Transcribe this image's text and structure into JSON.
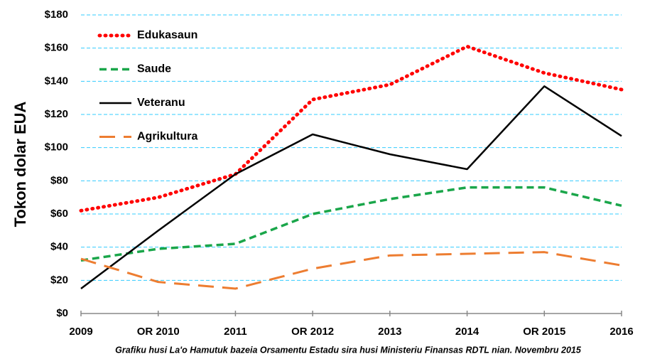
{
  "chart_data": {
    "type": "line",
    "y_label": "Tokon dolar EUA",
    "caption": "Grafiku husi La'o Hamutuk bazeia Orsamentu Estadu sira husi Ministeriu Finansas RDTL nian. Novembru 2015",
    "categories": [
      "2009",
      "OR 2010",
      "2011",
      "OR 2012",
      "2013",
      "2014",
      "OR 2015",
      "2016"
    ],
    "series": [
      {
        "name": "Edukasaun",
        "color": "#ff0000",
        "dash": "dotted",
        "values": [
          62,
          70,
          84,
          129,
          138,
          161,
          145,
          135
        ]
      },
      {
        "name": "Saude",
        "color": "#1aa64a",
        "dash": "dashed",
        "values": [
          32,
          39,
          42,
          60,
          69,
          76,
          76,
          65
        ]
      },
      {
        "name": "Veteranu",
        "color": "#000000",
        "dash": "solid",
        "values": [
          15,
          50,
          84,
          108,
          96,
          87,
          137,
          107
        ]
      },
      {
        "name": "Agrikultura",
        "color": "#ed7d31",
        "dash": "longdash",
        "values": [
          33,
          19,
          15,
          27,
          35,
          36,
          37,
          29
        ]
      }
    ],
    "ylim": [
      0,
      180
    ],
    "yticks": [
      {
        "value": 0,
        "label": "$0"
      },
      {
        "value": 20,
        "label": "$20"
      },
      {
        "value": 40,
        "label": "$40"
      },
      {
        "value": 60,
        "label": "$60"
      },
      {
        "value": 80,
        "label": "$80"
      },
      {
        "value": 100,
        "label": "$100"
      },
      {
        "value": 120,
        "label": "$120"
      },
      {
        "value": 140,
        "label": "$140"
      },
      {
        "value": 160,
        "label": "$160"
      },
      {
        "value": 180,
        "label": "$180"
      }
    ],
    "grid": true,
    "grid_color": "#33ccff",
    "legend": "upper left"
  }
}
